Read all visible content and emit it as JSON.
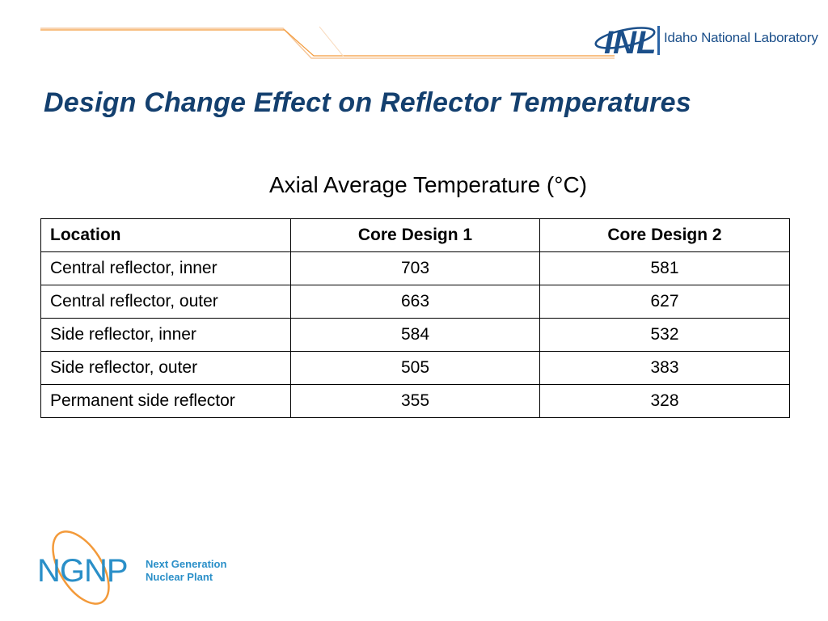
{
  "header": {
    "logo_text": "Idaho National Laboratory",
    "logo_letters": "INL",
    "accent_color": "#f39a3a",
    "brand_color": "#14406f"
  },
  "title": "Design Change Effect on Reflector Temperatures",
  "table": {
    "caption": "Axial Average Temperature (°C)",
    "columns": [
      "Location",
      "Core Design 1",
      "Core Design 2"
    ],
    "rows": [
      [
        "Central reflector, inner",
        "703",
        "581"
      ],
      [
        "Central reflector, outer",
        "663",
        "627"
      ],
      [
        "Side reflector, inner",
        "584",
        "532"
      ],
      [
        "Side reflector, outer",
        "505",
        "383"
      ],
      [
        "Permanent side reflector",
        "355",
        "328"
      ]
    ]
  },
  "footer": {
    "logo_letters": "NGNP",
    "logo_line1": "Next Generation",
    "logo_line2": "Nuclear Plant",
    "logo_color": "#2a8fc8"
  }
}
